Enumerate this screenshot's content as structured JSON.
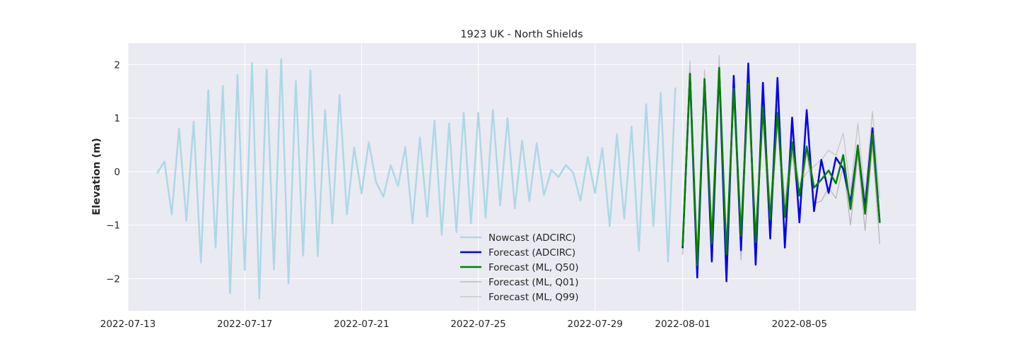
{
  "chart_data": {
    "type": "line",
    "title": "1923 UK - North Shields",
    "xlabel": "",
    "ylabel": "Elevation (m)",
    "x_ticks": [
      "2022-07-13",
      "2022-07-17",
      "2022-07-21",
      "2022-07-25",
      "2022-07-29",
      "2022-08-01",
      "2022-08-05"
    ],
    "y_ticks": [
      "−2",
      "−1",
      "0",
      "1",
      "2"
    ],
    "xlim": [
      "2022-07-13",
      "2022-08-09"
    ],
    "ylim": [
      -2.6,
      2.4
    ],
    "grid": true,
    "legend_position": "lower center",
    "series": [
      {
        "name": "Nowcast (ADCIRC)",
        "color": "#add8e6",
        "x_start": "2022-07-14",
        "step_days": 0.25,
        "values": [
          -0.03,
          0.19,
          -0.8,
          0.8,
          -0.92,
          0.93,
          -1.7,
          1.52,
          -1.42,
          1.6,
          -2.27,
          1.81,
          -1.84,
          2.03,
          -2.37,
          1.91,
          -1.83,
          2.1,
          -2.09,
          1.69,
          -1.57,
          1.89,
          -1.58,
          1.15,
          -0.97,
          1.43,
          -0.8,
          0.45,
          -0.41,
          0.55,
          -0.2,
          -0.47,
          0.12,
          -0.27,
          0.46,
          -0.97,
          0.64,
          -0.84,
          0.95,
          -1.18,
          0.9,
          -1.13,
          1.1,
          -0.97,
          1.1,
          -0.86,
          1.15,
          -0.63,
          1.0,
          -0.69,
          0.58,
          -0.55,
          0.53,
          -0.44,
          0.03,
          -0.1,
          0.12,
          -0.02,
          -0.54,
          0.27,
          -0.4,
          0.44,
          -1.02,
          0.7,
          -0.88,
          0.84,
          -1.48,
          1.26,
          -1.02,
          1.47,
          -1.68,
          1.57
        ]
      },
      {
        "name": "Forecast (ADCIRC)",
        "color": "#0000ee",
        "x_start": "2022-08-01",
        "step_days": 0.25,
        "values": [
          -1.43,
          1.82,
          -1.98,
          1.72,
          -1.68,
          1.92,
          -2.05,
          1.79,
          -1.47,
          2.02,
          -1.74,
          1.66,
          -1.25,
          1.75,
          -1.42,
          1.01,
          -0.95,
          1.15,
          -0.74,
          0.22,
          -0.4,
          0.26,
          0.05,
          -0.58,
          0.47,
          -0.67,
          0.81,
          -0.95
        ]
      },
      {
        "name": "Forecast (ML, Q50)",
        "color": "#008000",
        "x_start": "2022-08-01",
        "step_days": 0.25,
        "values": [
          -1.4,
          1.83,
          -1.75,
          1.73,
          -1.35,
          1.94,
          -1.55,
          1.55,
          -1.2,
          1.65,
          -1.32,
          1.2,
          -0.9,
          1.1,
          -0.85,
          0.55,
          -0.45,
          0.47,
          -0.3,
          -0.15,
          0.02,
          -0.22,
          0.31,
          -0.7,
          0.49,
          -0.79,
          0.71,
          -0.96
        ]
      },
      {
        "name": "Forecast (ML, Q01)",
        "color": "#b4b4b4",
        "x_start": "2022-08-01",
        "step_days": 0.25,
        "values": [
          -1.55,
          1.7,
          -1.9,
          1.6,
          -1.65,
          1.75,
          -1.75,
          1.4,
          -1.65,
          1.5,
          -1.55,
          1.05,
          -1.25,
          0.95,
          -1.15,
          0.35,
          -0.75,
          0.38,
          -0.6,
          -0.55,
          -0.3,
          -0.5,
          0.12,
          -1.0,
          0.3,
          -1.1,
          0.48,
          -1.35
        ]
      },
      {
        "name": "Forecast (ML, Q99)",
        "color": "#c4c4c4",
        "x_start": "2022-08-01",
        "step_days": 0.25,
        "values": [
          -1.3,
          2.07,
          -1.55,
          1.9,
          -1.05,
          2.17,
          -1.35,
          1.72,
          -0.95,
          1.85,
          -1.1,
          1.35,
          -0.6,
          1.25,
          -0.55,
          0.7,
          -0.25,
          -0.02,
          0.1,
          0.22,
          0.4,
          0.3,
          0.72,
          -0.38,
          0.9,
          -0.45,
          1.13,
          -0.5
        ]
      }
    ]
  }
}
